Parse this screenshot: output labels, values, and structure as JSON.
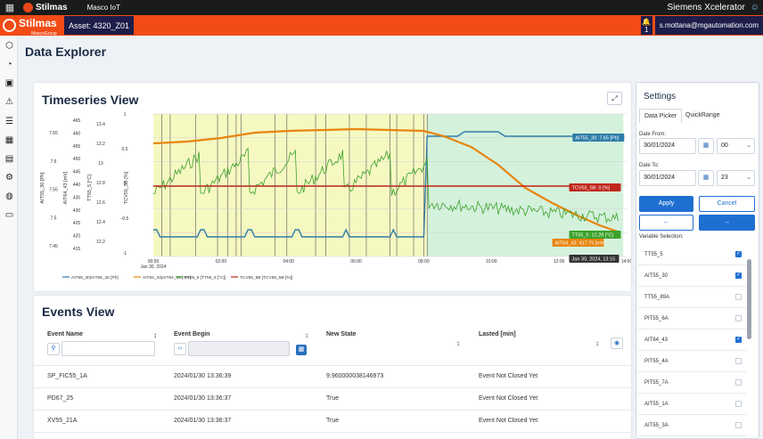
{
  "topbar": {
    "brand": "Stilmas",
    "app": "Masco IoT",
    "platform": "Siemens Xcelerator"
  },
  "assetbar": {
    "logo": "Stilmas",
    "logo_sub": "MascoGroup",
    "asset": "Asset: 4320_Z01",
    "bell_count": "1",
    "email": "s.mottana@mgautomation.com"
  },
  "page": {
    "title": "Data Explorer"
  },
  "timeseries": {
    "title": "Timeseries View",
    "expand_icon": "expand-icon"
  },
  "chart_data": {
    "type": "line",
    "x_ticks": [
      "00:00",
      "02:00",
      "04:00",
      "06:00",
      "08:00",
      "10:00",
      "12:00",
      "14:00"
    ],
    "x_sublabel": "Jan 30, 2024",
    "hover_time": "Jan 30, 2024, 13:15",
    "axes": [
      {
        "label": "AIT55_30 [Ph]",
        "ticks": [
          "7.65",
          "7.6",
          "7.55",
          "7.5",
          "7.45"
        ]
      },
      {
        "label": "AIT64_43 [mV]",
        "ticks": [
          "465",
          "460",
          "455",
          "450",
          "445",
          "440",
          "435",
          "430",
          "425",
          "420",
          "415"
        ]
      },
      {
        "label": "TT55_5 [°C]",
        "ticks": [
          "13.4",
          "13.2",
          "13",
          "12.8",
          "12.6",
          "12.4",
          "12.2"
        ]
      },
      {
        "label": "TCV55_5B [%]",
        "ticks": [
          "1",
          "0.5",
          "0",
          "-0.5",
          "-1"
        ]
      }
    ],
    "series": [
      {
        "name": "AIT55_30|AIT55_30 [Ph]",
        "color": "#2e7da8"
      },
      {
        "name": "AIT64_43|AIT64_43 [mV]",
        "color": "#e8850e"
      },
      {
        "name": "TT55_5 [TT55_5 [°C]]",
        "color": "#3aa12a"
      },
      {
        "name": "TCV55_5B [TCV55_5B [%]]",
        "color": "#c0271b"
      }
    ],
    "tooltips": [
      {
        "text": "AIT55_30: 7.65 [Ph]",
        "color": "#2e7da8"
      },
      {
        "text": "TCV55_5B: 0 [%]",
        "color": "#c0271b"
      },
      {
        "text": "TT55_5: 12.28 [°C]",
        "color": "#3aa12a"
      },
      {
        "text": "AIT64_43: 417.75 [mV]",
        "color": "#e8850e"
      }
    ],
    "legend_position": "bottom-left",
    "grid": true
  },
  "events": {
    "title": "Events View",
    "columns": [
      "Event Name",
      "Event Begin",
      "New State",
      "Lasted [min]"
    ],
    "rows": [
      {
        "name": "SP_FIC55_1A",
        "begin": "2024/01/30 13:36:39",
        "state": "9.960000038146973",
        "lasted": "Event Not Closed Yet"
      },
      {
        "name": "PD67_25",
        "begin": "2024/01/30 13:36:37",
        "state": "True",
        "lasted": "Event Not Closed Yet"
      },
      {
        "name": "XV55_21A",
        "begin": "2024/01/30 13:36:37",
        "state": "True",
        "lasted": "Event Not Closed Yet"
      }
    ]
  },
  "settings": {
    "title": "Settings",
    "tabs": [
      "Data Picker",
      "QuickRange"
    ],
    "date_from_label": "Date From:",
    "date_from": "30/01/2024",
    "hour_from": "00",
    "date_to_label": "Date To:",
    "date_to": "30/01/2024",
    "hour_to": "23",
    "apply": "Apply",
    "cancel": "Cancel",
    "prev": "←",
    "next": "→",
    "variable_label": "Variable Selection:",
    "variables": [
      {
        "name": "TT55_5",
        "checked": true
      },
      {
        "name": "AIT55_30",
        "checked": true
      },
      {
        "name": "TT55_89A",
        "checked": false
      },
      {
        "name": "PIT55_6A",
        "checked": false
      },
      {
        "name": "AIT64_43",
        "checked": true
      },
      {
        "name": "PIT55_4A",
        "checked": false
      },
      {
        "name": "PIT55_7A",
        "checked": false
      },
      {
        "name": "AIT55_1A",
        "checked": false
      },
      {
        "name": "AIT55_3A",
        "checked": false
      }
    ]
  }
}
